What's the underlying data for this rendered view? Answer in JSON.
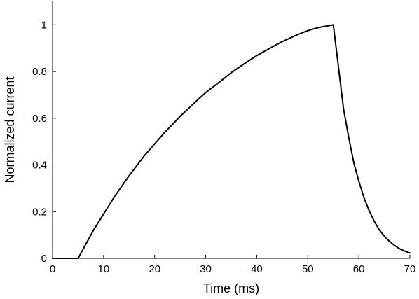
{
  "chart_data": {
    "type": "line",
    "title": "",
    "xlabel": "Time (ms)",
    "ylabel": "Normalized current",
    "xlim": [
      0,
      70
    ],
    "ylim": [
      0,
      1.1
    ],
    "x_ticks": [
      0,
      10,
      20,
      30,
      40,
      50,
      60,
      70
    ],
    "x_tick_labels": [
      "0",
      "10",
      "20",
      "30",
      "40",
      "50",
      "60",
      "70"
    ],
    "y_ticks": [
      0,
      0.2,
      0.4,
      0.6,
      0.8,
      1
    ],
    "y_tick_labels": [
      "0",
      "0.2",
      "0.4",
      "0.6",
      "0.8",
      "1"
    ],
    "grid": false,
    "line_color": "#000000",
    "series": [
      {
        "x": [
          0,
          5,
          6,
          8,
          10,
          12,
          15,
          18,
          20,
          22,
          25,
          28,
          30,
          33,
          35,
          38,
          40,
          43,
          45,
          48,
          50,
          52,
          55,
          56,
          57,
          58,
          59,
          60,
          61,
          62,
          63,
          64,
          65,
          66,
          67,
          68,
          69,
          70
        ],
        "y": [
          0,
          0,
          0.04,
          0.12,
          0.19,
          0.26,
          0.354,
          0.44,
          0.49,
          0.54,
          0.608,
          0.67,
          0.71,
          0.76,
          0.795,
          0.84,
          0.868,
          0.905,
          0.928,
          0.958,
          0.975,
          0.988,
          1.0,
          0.82,
          0.64,
          0.52,
          0.41,
          0.33,
          0.26,
          0.205,
          0.16,
          0.122,
          0.095,
          0.073,
          0.055,
          0.041,
          0.031,
          0.023
        ]
      }
    ]
  }
}
